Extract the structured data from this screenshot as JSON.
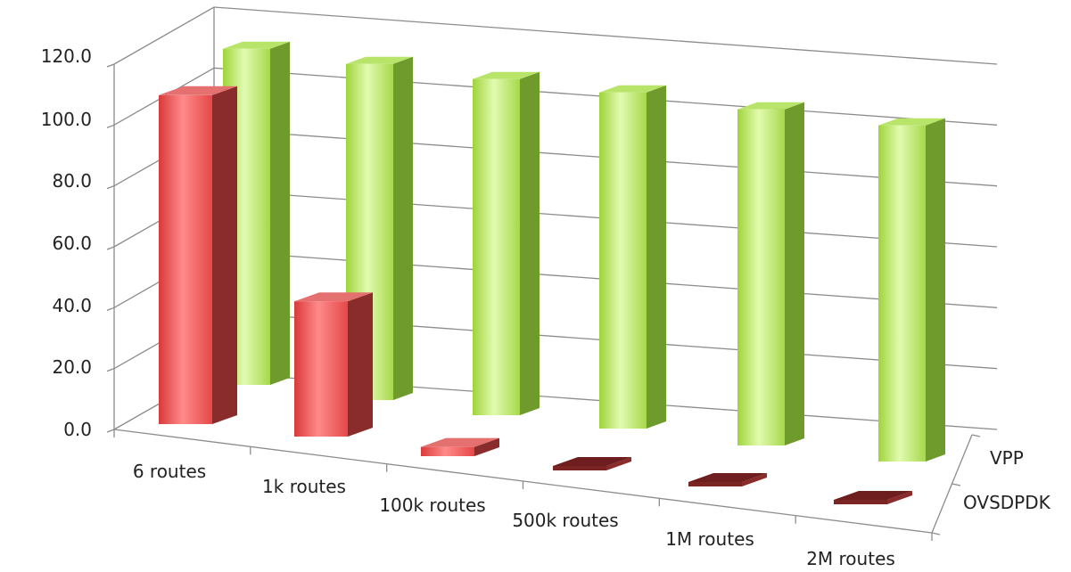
{
  "chart_data": {
    "type": "bar",
    "title": "",
    "xlabel": "",
    "ylabel": "",
    "categories": [
      "6 routes",
      "1k routes",
      "100k routes",
      "500k routes",
      "1M routes",
      "2M routes"
    ],
    "ylim": [
      0,
      120
    ],
    "yticks": [
      "0.0",
      "20.0",
      "40.0",
      "60.0",
      "80.0",
      "100.0",
      "120.0"
    ],
    "grid": true,
    "series": [
      {
        "name": "OVSDPDK",
        "values": [
          107,
          44,
          3,
          0.5,
          0.5,
          0.5
        ],
        "color": "#e8504f"
      },
      {
        "name": "VPP",
        "values": [
          110,
          110,
          110,
          110,
          110,
          110
        ],
        "color": "#a6d84a"
      }
    ]
  }
}
